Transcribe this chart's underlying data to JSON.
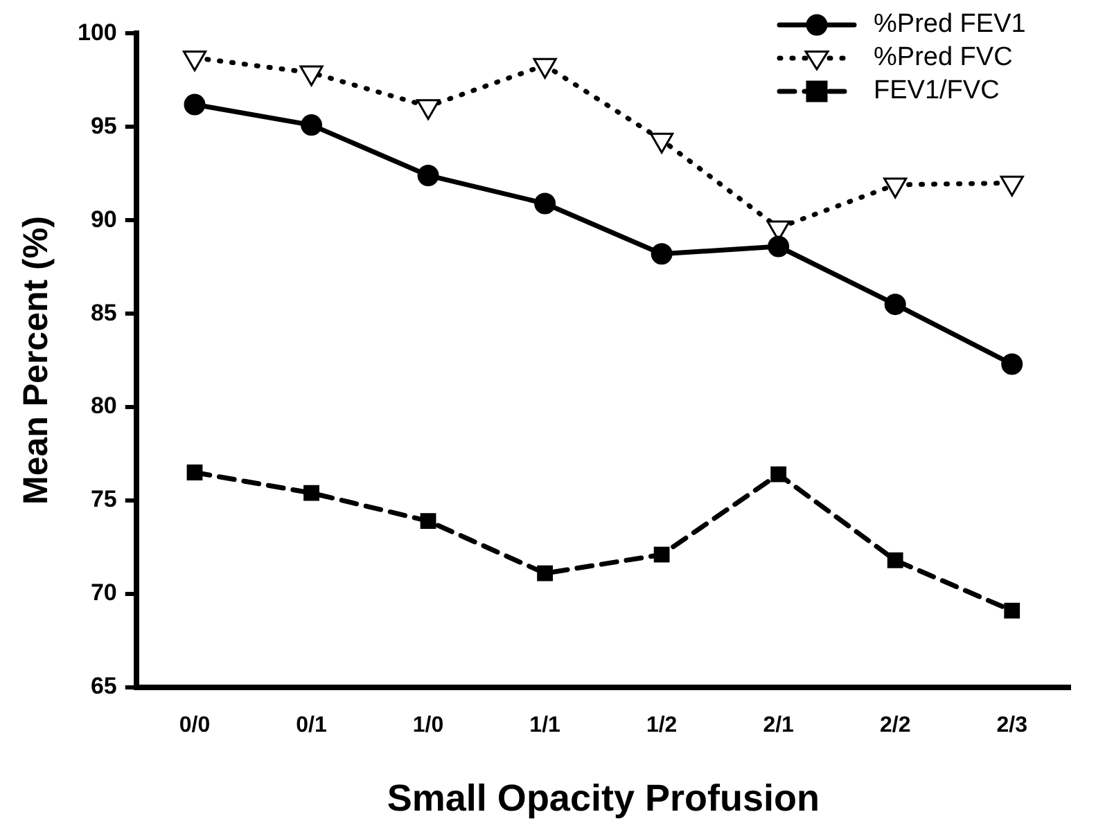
{
  "chart_data": {
    "type": "line",
    "xlabel": "Small Opacity Profusion",
    "ylabel": "Mean Percent (%)",
    "categories": [
      "0/0",
      "0/1",
      "1/0",
      "1/1",
      "1/2",
      "2/1",
      "2/2",
      "2/3"
    ],
    "series": [
      {
        "name": "%Pred FEV1",
        "color": "#000000",
        "marker": "circle",
        "line_style": "solid",
        "values": [
          96.2,
          95.1,
          92.4,
          90.9,
          88.2,
          88.6,
          85.5,
          82.3
        ]
      },
      {
        "name": "%Pred FVC",
        "color": "#000000",
        "marker": "triangle",
        "line_style": "dotted",
        "values": [
          98.7,
          97.9,
          96.1,
          98.3,
          94.3,
          89.6,
          91.9,
          92.0
        ]
      },
      {
        "name": "FEV1/FVC",
        "color": "#000000",
        "marker": "square",
        "line_style": "dashed",
        "values": [
          76.5,
          75.4,
          73.9,
          71.1,
          72.1,
          76.4,
          71.8,
          69.1
        ]
      }
    ],
    "ylim": [
      65,
      100
    ],
    "yticks": [
      65,
      70,
      75,
      80,
      85,
      90,
      95,
      100
    ],
    "grid": false,
    "legend": "top right"
  }
}
